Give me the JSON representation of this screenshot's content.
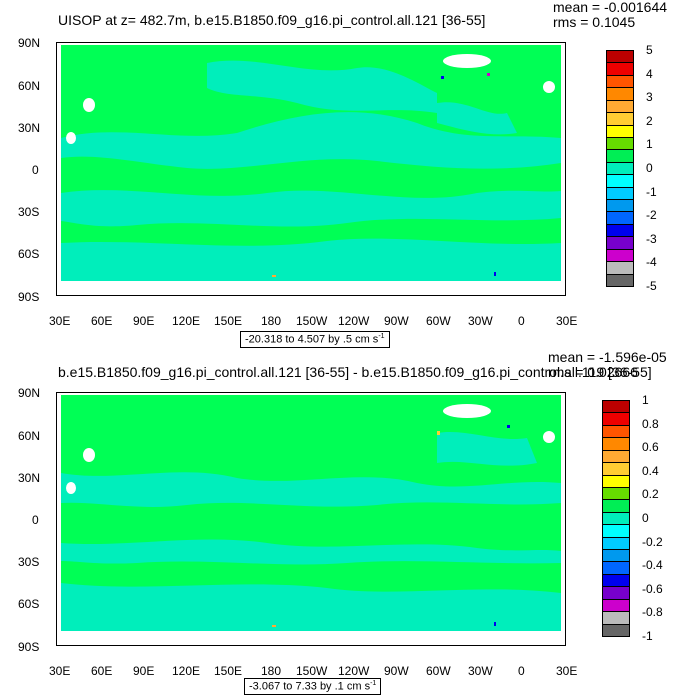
{
  "panels": [
    {
      "title": "UISOP at z= 482.7m, b.e15.B1850.f09_g16.pi_control.all.121 [36-55]",
      "mean": "mean = -0.001644",
      "rms": "rms = 0.1045",
      "range": "-20.318 to 4.507 by .5 cm s",
      "range_unit_exp": "-1",
      "colorbar_labels": [
        "5",
        "4",
        "3",
        "2",
        "1",
        "0",
        "-1",
        "-2",
        "-3",
        "-4",
        "-5"
      ]
    },
    {
      "title": "b.e15.B1850.f09_g16.pi_control.all.121 [36-55] - b.e15.B1850.f09_g16.pi_control.all.119 [36-55]",
      "mean": "mean = -1.596e-05",
      "rms": "rms = 0.02666",
      "range": "-3.067 to 7.33 by .1 cm s",
      "range_unit_exp": "-1",
      "colorbar_labels": [
        "1",
        "0.8",
        "0.6",
        "0.4",
        "0.2",
        "0",
        "-0.2",
        "-0.4",
        "-0.6",
        "-0.8",
        "-1"
      ]
    }
  ],
  "axes": {
    "lat_labels": [
      "90N",
      "60N",
      "30N",
      "0",
      "30S",
      "60S",
      "90S"
    ],
    "lon_labels": [
      "30E",
      "60E",
      "90E",
      "120E",
      "150E",
      "180",
      "150W",
      "120W",
      "90W",
      "60W",
      "30W",
      "0",
      "30E"
    ]
  },
  "colors": {
    "land_fill": "#ffffff",
    "ocean_main": "#00ff55",
    "ocean_secondary": "#00eebb",
    "colorbar": [
      "#bb0000",
      "#ee0000",
      "#ff5500",
      "#ff8800",
      "#ffaa33",
      "#ffcc33",
      "#ffff00",
      "#66dd00",
      "#00ee55",
      "#00eebb",
      "#00ffff",
      "#00ccff",
      "#0099ee",
      "#0066ff",
      "#0000ee",
      "#7700cc",
      "#cc00cc",
      "#bbbbbb",
      "#666666"
    ]
  }
}
